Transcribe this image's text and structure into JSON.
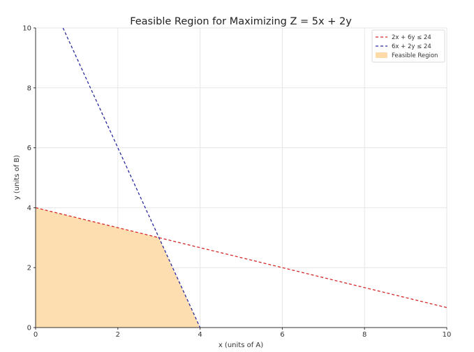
{
  "chart_data": {
    "type": "line",
    "title": "Feasible Region for Maximizing Z = 5x + 2y",
    "xlabel": "x (units of A)",
    "ylabel": "y (units of B)",
    "xlim": [
      0,
      10
    ],
    "ylim": [
      0,
      10
    ],
    "xticks": [
      0,
      2,
      4,
      6,
      8,
      10
    ],
    "yticks": [
      0,
      2,
      4,
      6,
      8,
      10
    ],
    "grid": true,
    "legend_position": "top-right",
    "series": [
      {
        "name": "2x + 6y ≤ 24",
        "style": "dashed",
        "color": "#d62728",
        "points": [
          [
            0,
            4
          ],
          [
            10,
            0.6667
          ]
        ]
      },
      {
        "name": "6x + 2y ≤ 24",
        "style": "dashed",
        "color": "#2a2aa0",
        "points": [
          [
            0.667,
            10
          ],
          [
            4,
            0
          ]
        ]
      }
    ],
    "regions": [
      {
        "name": "Feasible Region",
        "color": "#fddaa8",
        "polygon": [
          [
            0,
            0
          ],
          [
            0,
            4
          ],
          [
            3,
            3
          ],
          [
            4,
            0
          ]
        ]
      }
    ]
  }
}
